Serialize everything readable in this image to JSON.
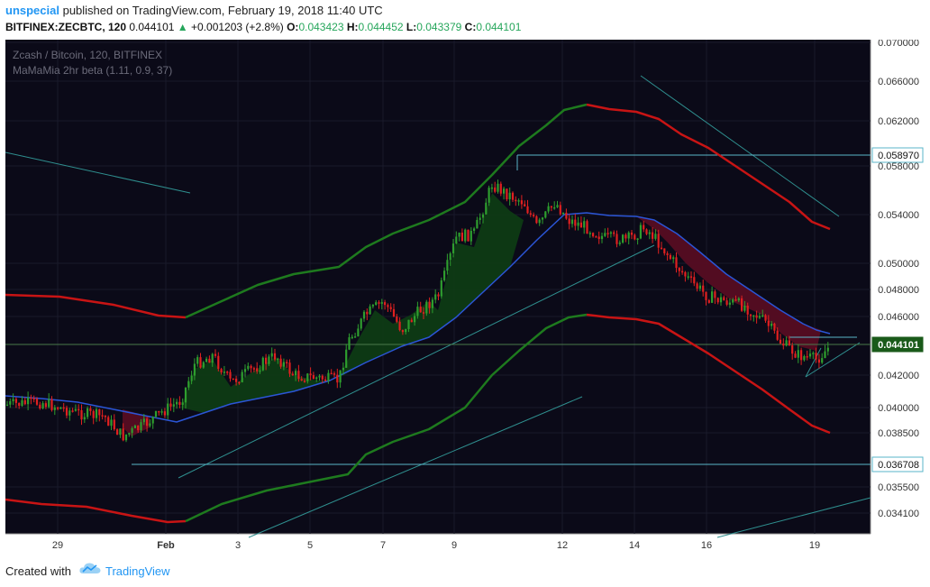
{
  "header": {
    "author": "unspecial",
    "published_text": "published on TradingView.com, February 19, 2018 11:40 UTC",
    "symbol": "BITFINEX:ZECBTC, 120",
    "last": "0.044101",
    "change_arrow": "▲",
    "change": "+0.001203 (+2.8%)",
    "o_label": "O:",
    "o_val": "0.043423",
    "h_label": "H:",
    "h_val": "0.044452",
    "l_label": "L:",
    "l_val": "0.043379",
    "c_label": "C:",
    "c_val": "0.044101"
  },
  "chart_labels": {
    "title": "Zcash / Bitcoin, 120, BITFINEX",
    "indicator": "MaMaMia 2hr beta (1.11, 0.9, 37)"
  },
  "footer": {
    "created_with": "Created with",
    "brand": "TradingView"
  },
  "colors": {
    "background": "#0b0a18",
    "up": "#2e9e2e",
    "down": "#e02020",
    "band_green": "#1e7a1e",
    "band_red": "#c81414",
    "ma": "#2b55d6",
    "trend": "#2f8f8f",
    "hline": "#5ab6c8"
  },
  "chart_data": {
    "type": "candlestick",
    "title": "Zcash / Bitcoin, 120, BITFINEX",
    "xlabels": [
      "29",
      "Feb",
      "3",
      "5",
      "7",
      "9",
      "12",
      "14",
      "16",
      "19"
    ],
    "yaxis_ticks": [
      "0.070000",
      "0.066000",
      "0.062000",
      "0.058000",
      "0.054000",
      "0.050000",
      "0.048000",
      "0.046000",
      "0.042000",
      "0.040000",
      "0.038500",
      "0.035500",
      "0.034100"
    ],
    "price_labels": [
      {
        "value": "0.058970",
        "style": "outline"
      },
      {
        "value": "0.044101",
        "style": "current"
      },
      {
        "value": "0.036708",
        "style": "outline"
      }
    ],
    "ohlc_last": {
      "open": 0.043423,
      "high": 0.044452,
      "low": 0.043379,
      "close": 0.044101
    }
  }
}
